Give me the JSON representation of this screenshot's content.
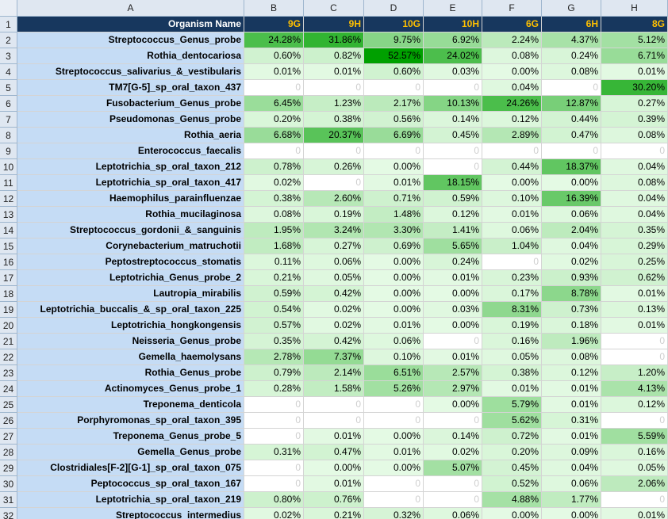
{
  "columns": [
    "A",
    "B",
    "C",
    "D",
    "E",
    "F",
    "G",
    "H"
  ],
  "header": [
    "Organism Name",
    "9G",
    "9H",
    "10G",
    "10H",
    "6G",
    "6H",
    "8G"
  ],
  "rows": [
    {
      "n": "2",
      "name": "Streptococcus_Genus_probe",
      "v": [
        "24.28%",
        "31.86%",
        "9.75%",
        "6.92%",
        "2.24%",
        "4.37%",
        "5.12%"
      ]
    },
    {
      "n": "3",
      "name": "Rothia_dentocariosa",
      "v": [
        "0.60%",
        "0.82%",
        "52.57%",
        "24.02%",
        "0.08%",
        "0.24%",
        "6.71%"
      ]
    },
    {
      "n": "4",
      "name": "Streptococcus_salivarius_&_vestibularis",
      "v": [
        "0.01%",
        "0.01%",
        "0.60%",
        "0.03%",
        "0.00%",
        "0.08%",
        "0.01%"
      ]
    },
    {
      "n": "5",
      "name": "TM7[G-5]_sp_oral_taxon_437",
      "v": [
        "0",
        "0",
        "0",
        "0",
        "0.04%",
        "0",
        "30.20%"
      ]
    },
    {
      "n": "6",
      "name": "Fusobacterium_Genus_probe",
      "v": [
        "6.45%",
        "1.23%",
        "2.17%",
        "10.13%",
        "24.26%",
        "12.87%",
        "0.27%"
      ]
    },
    {
      "n": "7",
      "name": "Pseudomonas_Genus_probe",
      "v": [
        "0.20%",
        "0.38%",
        "0.56%",
        "0.14%",
        "0.12%",
        "0.44%",
        "0.39%"
      ]
    },
    {
      "n": "8",
      "name": "Rothia_aeria",
      "v": [
        "6.68%",
        "20.37%",
        "6.69%",
        "0.45%",
        "2.89%",
        "0.47%",
        "0.08%"
      ]
    },
    {
      "n": "9",
      "name": "Enterococcus_faecalis",
      "v": [
        "0",
        "0",
        "0",
        "0",
        "0",
        "0",
        "0"
      ]
    },
    {
      "n": "10",
      "name": "Leptotrichia_sp_oral_taxon_212",
      "v": [
        "0.78%",
        "0.26%",
        "0.00%",
        "0",
        "0.44%",
        "18.37%",
        "0.04%"
      ]
    },
    {
      "n": "11",
      "name": "Leptotrichia_sp_oral_taxon_417",
      "v": [
        "0.02%",
        "0",
        "0.01%",
        "18.15%",
        "0.00%",
        "0.00%",
        "0.08%"
      ]
    },
    {
      "n": "12",
      "name": "Haemophilus_parainfluenzae",
      "v": [
        "0.38%",
        "2.60%",
        "0.71%",
        "0.59%",
        "0.10%",
        "16.39%",
        "0.04%"
      ]
    },
    {
      "n": "13",
      "name": "Rothia_mucilaginosa",
      "v": [
        "0.08%",
        "0.19%",
        "1.48%",
        "0.12%",
        "0.01%",
        "0.06%",
        "0.04%"
      ]
    },
    {
      "n": "14",
      "name": "Streptococcus_gordonii_&_sanguinis",
      "v": [
        "1.95%",
        "3.24%",
        "3.30%",
        "1.41%",
        "0.06%",
        "2.04%",
        "0.35%"
      ]
    },
    {
      "n": "15",
      "name": "Corynebacterium_matruchotii",
      "v": [
        "1.68%",
        "0.27%",
        "0.69%",
        "5.65%",
        "1.04%",
        "0.04%",
        "0.29%"
      ]
    },
    {
      "n": "16",
      "name": "Peptostreptococcus_stomatis",
      "v": [
        "0.11%",
        "0.06%",
        "0.00%",
        "0.24%",
        "0",
        "0.02%",
        "0.25%"
      ]
    },
    {
      "n": "17",
      "name": "Leptotrichia_Genus_probe_2",
      "v": [
        "0.21%",
        "0.05%",
        "0.00%",
        "0.01%",
        "0.23%",
        "0.93%",
        "0.62%"
      ]
    },
    {
      "n": "18",
      "name": "Lautropia_mirabilis",
      "v": [
        "0.59%",
        "0.42%",
        "0.00%",
        "0.00%",
        "0.17%",
        "8.78%",
        "0.01%"
      ]
    },
    {
      "n": "19",
      "name": "Leptotrichia_buccalis_&_sp_oral_taxon_225",
      "v": [
        "0.54%",
        "0.02%",
        "0.00%",
        "0.03%",
        "8.31%",
        "0.73%",
        "0.13%"
      ]
    },
    {
      "n": "20",
      "name": "Leptotrichia_hongkongensis",
      "v": [
        "0.57%",
        "0.02%",
        "0.01%",
        "0.00%",
        "0.19%",
        "0.18%",
        "0.01%"
      ]
    },
    {
      "n": "21",
      "name": "Neisseria_Genus_probe",
      "v": [
        "0.35%",
        "0.42%",
        "0.06%",
        "0",
        "0.16%",
        "1.96%",
        "0"
      ]
    },
    {
      "n": "22",
      "name": "Gemella_haemolysans",
      "v": [
        "2.78%",
        "7.37%",
        "0.10%",
        "0.01%",
        "0.05%",
        "0.08%",
        "0"
      ]
    },
    {
      "n": "23",
      "name": "Rothia_Genus_probe",
      "v": [
        "0.79%",
        "2.14%",
        "6.51%",
        "2.57%",
        "0.38%",
        "0.12%",
        "1.20%"
      ]
    },
    {
      "n": "24",
      "name": "Actinomyces_Genus_probe_1",
      "v": [
        "0.28%",
        "1.58%",
        "5.26%",
        "2.97%",
        "0.01%",
        "0.01%",
        "4.13%"
      ]
    },
    {
      "n": "25",
      "name": "Treponema_denticola",
      "v": [
        "0",
        "0",
        "0",
        "0.00%",
        "5.79%",
        "0.01%",
        "0.12%"
      ]
    },
    {
      "n": "26",
      "name": "Porphyromonas_sp_oral_taxon_395",
      "v": [
        "0",
        "0",
        "0",
        "0",
        "5.62%",
        "0.31%",
        "0"
      ]
    },
    {
      "n": "27",
      "name": "Treponema_Genus_probe_5",
      "v": [
        "0",
        "0.01%",
        "0.00%",
        "0.14%",
        "0.72%",
        "0.01%",
        "5.59%"
      ]
    },
    {
      "n": "28",
      "name": "Gemella_Genus_probe",
      "v": [
        "0.31%",
        "0.47%",
        "0.01%",
        "0.02%",
        "0.20%",
        "0.09%",
        "0.16%"
      ]
    },
    {
      "n": "29",
      "name": "Clostridiales[F-2][G-1]_sp_oral_taxon_075",
      "v": [
        "0",
        "0.00%",
        "0.00%",
        "5.07%",
        "0.45%",
        "0.04%",
        "0.05%"
      ]
    },
    {
      "n": "30",
      "name": "Peptococcus_sp_oral_taxon_167",
      "v": [
        "0",
        "0.01%",
        "0",
        "0",
        "0.52%",
        "0.06%",
        "2.06%"
      ]
    },
    {
      "n": "31",
      "name": "Leptotrichia_sp_oral_taxon_219",
      "v": [
        "0.80%",
        "0.76%",
        "0",
        "0",
        "4.88%",
        "1.77%",
        "0"
      ]
    },
    {
      "n": "32",
      "name": "Streptococcus_intermedius",
      "v": [
        "0.02%",
        "0.21%",
        "0.32%",
        "0.06%",
        "0.00%",
        "0.00%",
        "0.01%"
      ]
    }
  ]
}
